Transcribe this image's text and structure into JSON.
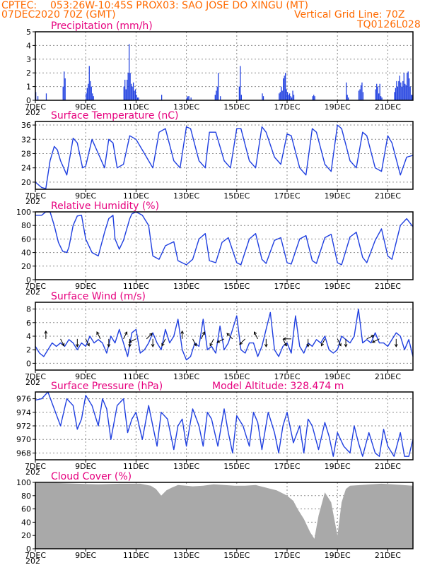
{
  "header": {
    "source": "CPTEC:",
    "location": "053:26W-10:45S   PROX03: SAO JOSE DO XINGU (MT)",
    "date": "07DEC2020 70Z (GMT)",
    "grid_note": "Vertical Grid Line: 70Z",
    "model": "TQ0126L028"
  },
  "colors": {
    "header": "#ff6a00",
    "title": "#e6007e",
    "line": "#1f3fe0",
    "cloud": "#a9a9a9",
    "grid": "#8c8c8c"
  },
  "x_axis": {
    "hours_total": 360,
    "ticks": [
      {
        "label": "7DEC",
        "h": 0
      },
      {
        "label": "9DEC",
        "h": 48
      },
      {
        "label": "11DEC",
        "h": 96
      },
      {
        "label": "13DEC",
        "h": 144
      },
      {
        "label": "15DEC",
        "h": 192
      },
      {
        "label": "17DEC",
        "h": 240
      },
      {
        "label": "19DEC",
        "h": 288
      },
      {
        "label": "21DEC",
        "h": 336
      }
    ],
    "year_fragment": "202"
  },
  "chart_data": [
    {
      "type": "bar",
      "title": "Precipitation (mm/h)",
      "ylim": [
        0,
        5
      ],
      "yticks": [
        0,
        1,
        2,
        3,
        4,
        5
      ],
      "x_hours": [
        0,
        2,
        10,
        26,
        27,
        28,
        48,
        49,
        50,
        51,
        52,
        53,
        54,
        55,
        84,
        85,
        86,
        87,
        88,
        89,
        90,
        91,
        92,
        93,
        94,
        95,
        96,
        97,
        98,
        120,
        144,
        145,
        146,
        148,
        171,
        172,
        173,
        174,
        176,
        194,
        195,
        196,
        216,
        217,
        232,
        233,
        234,
        235,
        236,
        237,
        238,
        239,
        240,
        241,
        242,
        243,
        244,
        245,
        246,
        264,
        265,
        266,
        296,
        297,
        298,
        308,
        309,
        310,
        311,
        312,
        324,
        325,
        326,
        327,
        328,
        329,
        330,
        342,
        343,
        344,
        345,
        346,
        347,
        348,
        349,
        350,
        351,
        352,
        353,
        354,
        355,
        356,
        357,
        358,
        359
      ],
      "values": [
        0.6,
        0.3,
        0.5,
        1.0,
        2.1,
        1.6,
        0.5,
        0.9,
        1.2,
        2.5,
        1.4,
        1.0,
        0.5,
        0.3,
        1.0,
        1.5,
        0.8,
        1.5,
        2.0,
        4.1,
        2.0,
        1.2,
        1.0,
        1.3,
        0.7,
        0.8,
        0.4,
        0.2,
        0.2,
        0.4,
        0.2,
        0.3,
        0.3,
        0.2,
        0.4,
        0.7,
        1.0,
        2.0,
        0.3,
        1.0,
        2.5,
        0.4,
        0.5,
        0.3,
        0.5,
        0.6,
        1.0,
        0.7,
        1.6,
        1.8,
        2.0,
        0.8,
        0.6,
        0.4,
        0.5,
        0.3,
        0.2,
        0.7,
        0.4,
        0.3,
        0.4,
        0.3,
        1.3,
        0.4,
        0.2,
        0.7,
        0.8,
        1.1,
        1.3,
        0.6,
        0.8,
        1.2,
        1.0,
        0.5,
        1.2,
        0.3,
        0.2,
        0.6,
        0.9,
        1.4,
        1.0,
        1.4,
        1.8,
        1.3,
        1.0,
        1.4,
        2.0,
        1.2,
        1.1,
        2.0,
        2.1,
        1.6,
        1.0,
        0.4,
        0.4
      ]
    },
    {
      "type": "line",
      "title": "Surface Temperature (nC)",
      "ylim": [
        18,
        37
      ],
      "yticks": [
        20,
        24,
        28,
        32,
        36
      ],
      "x_hours": [
        0,
        6,
        10,
        14,
        18,
        21,
        24,
        30,
        36,
        40,
        45,
        48,
        54,
        60,
        66,
        70,
        74,
        78,
        84,
        90,
        96,
        102,
        108,
        112,
        118,
        124,
        132,
        138,
        144,
        148,
        156,
        162,
        166,
        172,
        180,
        186,
        192,
        196,
        204,
        210,
        216,
        220,
        228,
        234,
        240,
        244,
        252,
        258,
        264,
        268,
        276,
        282,
        288,
        292,
        300,
        306,
        312,
        316,
        324,
        330,
        336,
        340,
        348,
        354,
        360
      ],
      "values": [
        20,
        18.5,
        18.2,
        26,
        30,
        29,
        26,
        22,
        32.3,
        31,
        24,
        24.5,
        32,
        28,
        24,
        32,
        31,
        24,
        25,
        33,
        32,
        29,
        26,
        24,
        34,
        35,
        26,
        24,
        35.5,
        35,
        26,
        24,
        34,
        34,
        26,
        24,
        35,
        35,
        26,
        24,
        35.5,
        34,
        27,
        25,
        33.5,
        33,
        24,
        22,
        35,
        34,
        25,
        23,
        36,
        35,
        26,
        24,
        34,
        33,
        24,
        23,
        33,
        31,
        22,
        27,
        27.5
      ]
    },
    {
      "type": "line",
      "title": "Relative Humidity (%)",
      "ylim": [
        0,
        100
      ],
      "yticks": [
        0,
        20,
        40,
        60,
        80,
        100
      ],
      "x_hours": [
        0,
        6,
        10,
        14,
        18,
        22,
        26,
        30,
        32,
        36,
        40,
        44,
        48,
        54,
        60,
        66,
        70,
        74,
        76,
        80,
        84,
        90,
        92,
        96,
        102,
        108,
        112,
        118,
        124,
        132,
        136,
        144,
        150,
        156,
        162,
        166,
        172,
        178,
        184,
        192,
        196,
        204,
        210,
        216,
        220,
        228,
        234,
        240,
        244,
        252,
        258,
        264,
        268,
        276,
        282,
        288,
        292,
        300,
        306,
        312,
        316,
        324,
        330,
        336,
        340,
        348,
        354,
        360
      ],
      "values": [
        95,
        95,
        100,
        100,
        80,
        55,
        42,
        40,
        48,
        80,
        94,
        95,
        60,
        40,
        35,
        70,
        90,
        95,
        60,
        45,
        58,
        90,
        97,
        100,
        95,
        80,
        35,
        30,
        50,
        56,
        28,
        22,
        30,
        60,
        68,
        28,
        25,
        55,
        62,
        25,
        22,
        60,
        68,
        30,
        24,
        58,
        62,
        25,
        23,
        60,
        65,
        28,
        24,
        62,
        67,
        25,
        22,
        63,
        70,
        33,
        25,
        58,
        75,
        35,
        30,
        80,
        90,
        78
      ]
    },
    {
      "type": "line",
      "title": "Surface Wind (m/s)",
      "ylim": [
        -1,
        9
      ],
      "yticks": [
        0,
        2,
        4,
        6,
        8
      ],
      "x_hours": [
        0,
        4,
        8,
        12,
        16,
        20,
        24,
        28,
        32,
        36,
        40,
        44,
        48,
        52,
        56,
        60,
        64,
        68,
        72,
        76,
        80,
        84,
        88,
        92,
        96,
        100,
        104,
        108,
        112,
        116,
        120,
        124,
        128,
        132,
        136,
        140,
        144,
        148,
        152,
        156,
        160,
        164,
        168,
        172,
        176,
        180,
        184,
        188,
        192,
        196,
        200,
        204,
        208,
        212,
        216,
        220,
        224,
        228,
        232,
        236,
        240,
        244,
        248,
        252,
        256,
        260,
        264,
        268,
        272,
        276,
        280,
        284,
        288,
        292,
        296,
        300,
        304,
        308,
        312,
        316,
        320,
        324,
        328,
        332,
        336,
        340,
        344,
        348,
        352,
        356,
        360
      ],
      "values": [
        2.5,
        1.5,
        1,
        2,
        3,
        2.5,
        3,
        2.5,
        3.5,
        3,
        2,
        3,
        2.5,
        4,
        3,
        3.5,
        3,
        1.5,
        4,
        3,
        5,
        3,
        1,
        4.5,
        5,
        1.5,
        2,
        3,
        4.5,
        3,
        2,
        5,
        3,
        4,
        6.5,
        2,
        0.5,
        1,
        3,
        2.5,
        6.5,
        2,
        2.5,
        1.5,
        5.5,
        2,
        3,
        5,
        7,
        2,
        1.5,
        3,
        3,
        1,
        2.5,
        5,
        7.5,
        2,
        1,
        2.5,
        3,
        1.5,
        7,
        2.5,
        1.5,
        3,
        2.5,
        3.5,
        3,
        4,
        2,
        1.5,
        2,
        4,
        3.5,
        3,
        4,
        8,
        3,
        3.5,
        3,
        4.5,
        3,
        3,
        2.5,
        3.5,
        4.5,
        4,
        2,
        3.5,
        1
      ],
      "arrows": [
        {
          "h": 10,
          "u": 0,
          "v": 1
        },
        {
          "h": 24,
          "u": 0.5,
          "v": -1
        },
        {
          "h": 40,
          "u": 0,
          "v": -1
        },
        {
          "h": 48,
          "u": 0.5,
          "v": -1
        },
        {
          "h": 62,
          "u": -0.5,
          "v": 1
        },
        {
          "h": 70,
          "u": 0,
          "v": -1
        },
        {
          "h": 84,
          "u": 0.5,
          "v": 1
        },
        {
          "h": 90,
          "u": 0,
          "v": -1
        },
        {
          "h": 96,
          "u": -1,
          "v": -0.5
        },
        {
          "h": 106,
          "u": 1,
          "v": 1
        },
        {
          "h": 112,
          "u": 0,
          "v": -1
        },
        {
          "h": 124,
          "u": -0.5,
          "v": -1
        },
        {
          "h": 140,
          "u": 0,
          "v": 1
        },
        {
          "h": 150,
          "u": 0.5,
          "v": -1
        },
        {
          "h": 158,
          "u": 0.5,
          "v": 1
        },
        {
          "h": 170,
          "u": -0.5,
          "v": -1
        },
        {
          "h": 180,
          "u": -1,
          "v": -0.5
        },
        {
          "h": 188,
          "u": -1,
          "v": 1
        },
        {
          "h": 200,
          "u": -1,
          "v": -1
        },
        {
          "h": 212,
          "u": -0.5,
          "v": 1
        },
        {
          "h": 220,
          "u": 0,
          "v": -1
        },
        {
          "h": 236,
          "u": 0.5,
          "v": -1
        },
        {
          "h": 244,
          "u": -1,
          "v": 0
        },
        {
          "h": 260,
          "u": 0,
          "v": -1
        },
        {
          "h": 276,
          "u": -0.5,
          "v": -1
        },
        {
          "h": 288,
          "u": 0.5,
          "v": -1
        },
        {
          "h": 296,
          "u": 0,
          "v": -1
        },
        {
          "h": 316,
          "u": 1,
          "v": 0.5
        },
        {
          "h": 328,
          "u": -1,
          "v": -0.5
        },
        {
          "h": 344,
          "u": 0,
          "v": -1
        }
      ]
    },
    {
      "type": "line",
      "title": "Surface Pressure (hPa)",
      "subtitle": "Model Altitude: 328.474 m",
      "ylim": [
        967,
        977
      ],
      "yticks": [
        968,
        970,
        972,
        974,
        976
      ],
      "x_hours": [
        0,
        6,
        12,
        18,
        24,
        30,
        36,
        40,
        44,
        48,
        54,
        60,
        64,
        68,
        72,
        78,
        84,
        88,
        92,
        96,
        102,
        108,
        112,
        116,
        120,
        126,
        132,
        136,
        140,
        144,
        150,
        156,
        160,
        164,
        168,
        174,
        180,
        184,
        188,
        192,
        198,
        204,
        208,
        212,
        216,
        222,
        228,
        232,
        236,
        240,
        246,
        252,
        256,
        260,
        264,
        270,
        276,
        280,
        284,
        288,
        294,
        300,
        304,
        308,
        312,
        318,
        324,
        328,
        332,
        336,
        342,
        348,
        352,
        356,
        360
      ],
      "values": [
        975.8,
        976,
        977,
        974.5,
        972,
        976,
        975,
        971.5,
        973,
        976.5,
        975,
        972,
        976,
        974.5,
        970,
        975,
        976,
        971,
        973,
        974,
        970,
        975,
        972,
        969,
        974,
        973,
        968.5,
        972,
        973,
        969,
        974.5,
        972,
        969,
        974,
        973,
        969,
        974.5,
        971,
        968,
        973.5,
        972,
        969,
        974,
        972.5,
        968.5,
        974,
        971,
        968,
        972,
        974,
        969.5,
        972,
        968,
        973,
        972,
        968.5,
        972.5,
        970.5,
        967.5,
        971,
        969,
        968,
        972,
        969.5,
        967.5,
        971,
        968,
        967.5,
        971.5,
        969,
        967.5,
        971,
        967.5,
        967.5,
        970
      ]
    },
    {
      "type": "area",
      "title": "Cloud Cover (%)",
      "ylim": [
        0,
        100
      ],
      "yticks": [
        0,
        20,
        40,
        60,
        80,
        100
      ],
      "x_hours": [
        0,
        20,
        40,
        60,
        80,
        100,
        110,
        115,
        120,
        125,
        130,
        136,
        144,
        150,
        160,
        170,
        180,
        190,
        200,
        210,
        220,
        230,
        240,
        246,
        250,
        256,
        262,
        266,
        270,
        276,
        282,
        288,
        292,
        296,
        300,
        310,
        320,
        330,
        340,
        350,
        360
      ],
      "values": [
        99,
        99,
        98,
        97,
        98,
        98,
        95,
        90,
        80,
        88,
        92,
        96,
        95,
        94,
        95,
        97,
        96,
        95,
        95,
        96,
        92,
        88,
        80,
        72,
        60,
        45,
        25,
        15,
        50,
        85,
        70,
        20,
        70,
        90,
        95,
        96,
        97,
        98,
        97,
        96,
        95
      ]
    }
  ]
}
